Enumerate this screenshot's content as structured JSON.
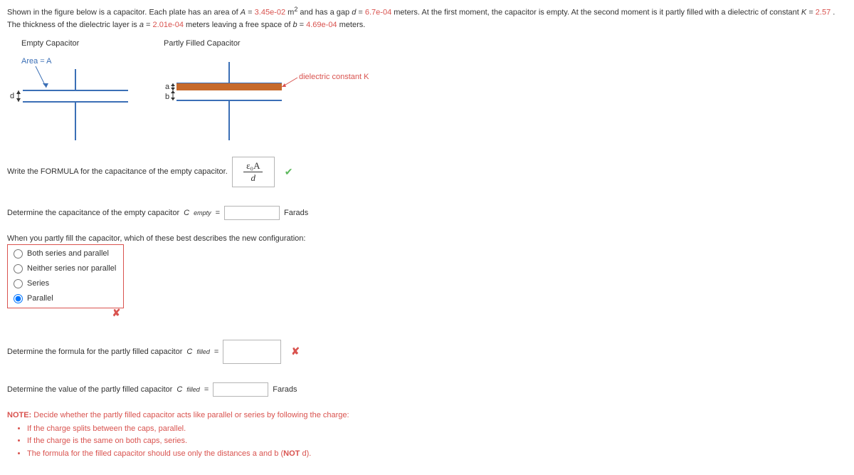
{
  "intro": {
    "part1": "Shown in the figure below is a capacitor. Each plate has an area of ",
    "A_label": "A",
    "A_val": "3.45e-02",
    "A_unit_pre": " m",
    "A_unit_sup": "2",
    "part2": " and has a gap ",
    "d_label": "d",
    "d_val": "6.7e-04",
    "part3": " meters. At the first moment, the capacitor is empty. At the second moment is it partly filled with a dielectric of constant ",
    "K_label": "K",
    "K_val": "2.57",
    "part4": ". The thickness of the dielectric layer is ",
    "a_label": "a",
    "a_val": "2.01e-04",
    "part5": " meters leaving a free space of ",
    "b_label": "b",
    "b_val": "4.69e-04",
    "part6": " meters."
  },
  "fig": {
    "empty_title": "Empty Capacitor",
    "filled_title": "Partly Filled Capacitor",
    "area_label": "Area = A",
    "d_label": "d",
    "a_label": "a",
    "b_label": "b",
    "dielectric_label": "dielectric constant K",
    "plate_color": "#3b6fb6",
    "dielectric_color": "#c66a2c",
    "arrow_color": "#d9534f"
  },
  "q1": {
    "prompt": "Write the FORMULA for the capacitance of the empty capacitor.",
    "formula_top": "ε₀A",
    "formula_bot": "d",
    "correct": true
  },
  "q2": {
    "prompt_pre": "Determine the capacitance of the empty capacitor ",
    "C_label": "C",
    "C_sub": "empty",
    "eq": " = ",
    "value": "",
    "unit": "Farads"
  },
  "q3": {
    "prompt": "When you partly fill the capacitor, which of these best describes the new configuration:",
    "options": [
      {
        "label": "Both series and parallel",
        "checked": false
      },
      {
        "label": "Neither series nor parallel",
        "checked": false
      },
      {
        "label": "Series",
        "checked": false
      },
      {
        "label": "Parallel",
        "checked": true
      }
    ],
    "correct": false
  },
  "q4": {
    "prompt_pre": "Determine the formula for the partly filled capacitor ",
    "C_label": "C",
    "C_sub": "filled",
    "eq": " = ",
    "value": "",
    "correct": false
  },
  "q5": {
    "prompt_pre": "Determine the value of the partly filled capacitor ",
    "C_label": "C",
    "C_sub": "filled",
    "eq": " = ",
    "value": "",
    "unit": "Farads"
  },
  "note": {
    "label": "NOTE:",
    "text": " Decide whether the partly filled capacitor acts like parallel or series by following the charge:",
    "bullets": [
      "If the charge splits between the caps, parallel.",
      "If the charge is the same on both caps, series.",
      "The formula for the filled capacitor should use only the distances a and b (<B>NOT</B> d)."
    ]
  }
}
